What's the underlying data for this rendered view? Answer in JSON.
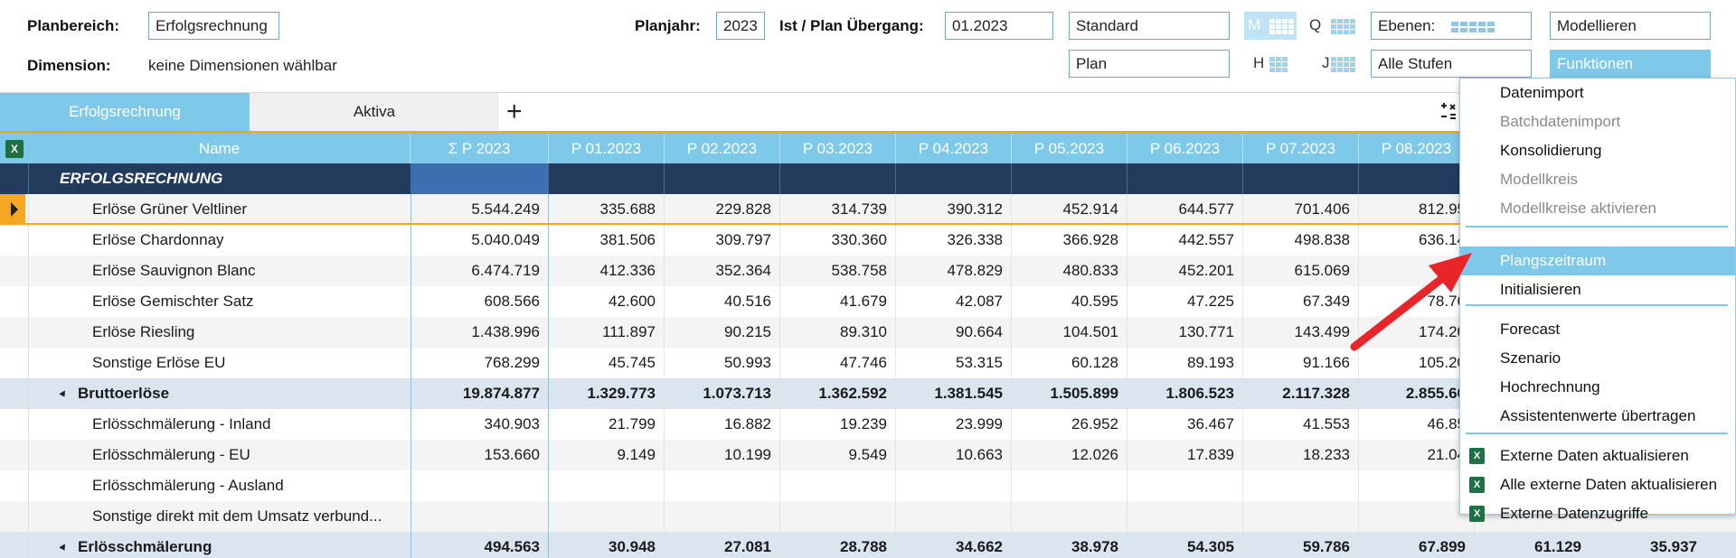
{
  "header": {
    "planbereich_label": "Planbereich:",
    "planbereich_value": "Erfolgsrechnung",
    "dimension_label": "Dimension:",
    "dimension_value": "keine Dimensionen wählbar",
    "planjahr_label": "Planjahr:",
    "planjahr_value": "2023",
    "uebergang_label": "Ist / Plan Übergang:",
    "uebergang_value": "01.2023",
    "version_value": "Standard",
    "type_value": "Plan",
    "period_m": "M",
    "period_q": "Q",
    "period_h": "H",
    "period_j": "J",
    "ebenen_label": "Ebenen:",
    "stufen_value": "Alle Stufen",
    "modellieren_value": "Modellieren",
    "funktionen_value": "Funktionen"
  },
  "tabs": {
    "tab1": "Erfolgsrechnung",
    "tab2": "Aktiva",
    "add": "+"
  },
  "table": {
    "excel_icon": "X",
    "name_header": "Name",
    "sum_header": "Σ  P  2023",
    "month_headers": [
      "P 01.2023",
      "P 02.2023",
      "P 03.2023",
      "P 04.2023",
      "P 05.2023",
      "P 06.2023",
      "P 07.2023",
      "P 08.2023"
    ],
    "title_row": "ERFOLGSRECHNUNG",
    "rows": [
      {
        "name": "Erlöse Grüner Veltliner",
        "sum": "5.544.249",
        "m": [
          "335.688",
          "229.828",
          "314.739",
          "390.312",
          "452.914",
          "644.577",
          "701.406",
          "812.95"
        ]
      },
      {
        "name": "Erlöse Chardonnay",
        "sum": "5.040.049",
        "m": [
          "381.506",
          "309.797",
          "330.360",
          "326.338",
          "366.928",
          "442.557",
          "498.838",
          "636.14"
        ]
      },
      {
        "name": "Erlöse Sauvignon Blanc",
        "sum": "6.474.719",
        "m": [
          "412.336",
          "352.364",
          "538.758",
          "478.829",
          "480.833",
          "452.201",
          "615.069",
          "1.04"
        ]
      },
      {
        "name": "Erlöse Gemischter Satz",
        "sum": "608.566",
        "m": [
          "42.600",
          "40.516",
          "41.679",
          "42.087",
          "40.595",
          "47.225",
          "67.349",
          "78.76"
        ]
      },
      {
        "name": "Erlöse Riesling",
        "sum": "1.438.996",
        "m": [
          "111.897",
          "90.215",
          "89.310",
          "90.664",
          "104.501",
          "130.771",
          "143.499",
          "174.20"
        ]
      },
      {
        "name": "Sonstige Erlöse EU",
        "sum": "768.299",
        "m": [
          "45.745",
          "50.993",
          "47.746",
          "53.315",
          "60.128",
          "89.193",
          "91.166",
          "105.20"
        ]
      },
      {
        "name": "Bruttoerlöse",
        "sum": "19.874.877",
        "m": [
          "1.329.773",
          "1.073.713",
          "1.362.592",
          "1.381.545",
          "1.505.899",
          "1.806.523",
          "2.117.328",
          "2.855.60"
        ]
      },
      {
        "name": "Erlösschmälerung - Inland",
        "sum": "340.903",
        "m": [
          "21.799",
          "16.882",
          "19.239",
          "23.999",
          "26.952",
          "36.467",
          "41.553",
          "46.85"
        ]
      },
      {
        "name": "Erlösschmälerung - EU",
        "sum": "153.660",
        "m": [
          "9.149",
          "10.199",
          "9.549",
          "10.663",
          "12.026",
          "17.839",
          "18.233",
          "21.04"
        ]
      },
      {
        "name": "Erlösschmälerung - Ausland",
        "sum": "",
        "m": [
          "",
          "",
          "",
          "",
          "",
          "",
          "",
          ""
        ]
      },
      {
        "name": "Sonstige direkt mit dem Umsatz verbund...",
        "sum": "",
        "m": [
          "",
          "",
          "",
          "",
          "",
          "",
          "",
          ""
        ]
      },
      {
        "name": "Erlösschmälerung",
        "sum": "494.563",
        "m": [
          "30.948",
          "27.081",
          "28.788",
          "34.662",
          "38.978",
          "54.305",
          "59.786",
          "67.899"
        ],
        "extra": [
          "61.129",
          "35.937"
        ]
      }
    ]
  },
  "menu": {
    "items": [
      "Datenimport",
      "Batchdatenimport",
      "Konsolidierung",
      "Modellkreis",
      "Modellkreise aktivieren",
      "Plangszeitraum",
      "Initialisieren",
      "Forecast",
      "Szenario",
      "Hochrechnung",
      "Assistentenwerte übertragen",
      "Externe Daten aktualisieren",
      "Alle externe Daten aktualisieren",
      "Externe Datenzugriffe"
    ],
    "excel_icon": "X"
  },
  "colors": {
    "accent": "#7ec8ea",
    "title_row": "#233c5e",
    "selection": "#f5a623",
    "sum_row": "#dae5f0",
    "arrow": "#e8262a",
    "excel": "#1e7145"
  }
}
